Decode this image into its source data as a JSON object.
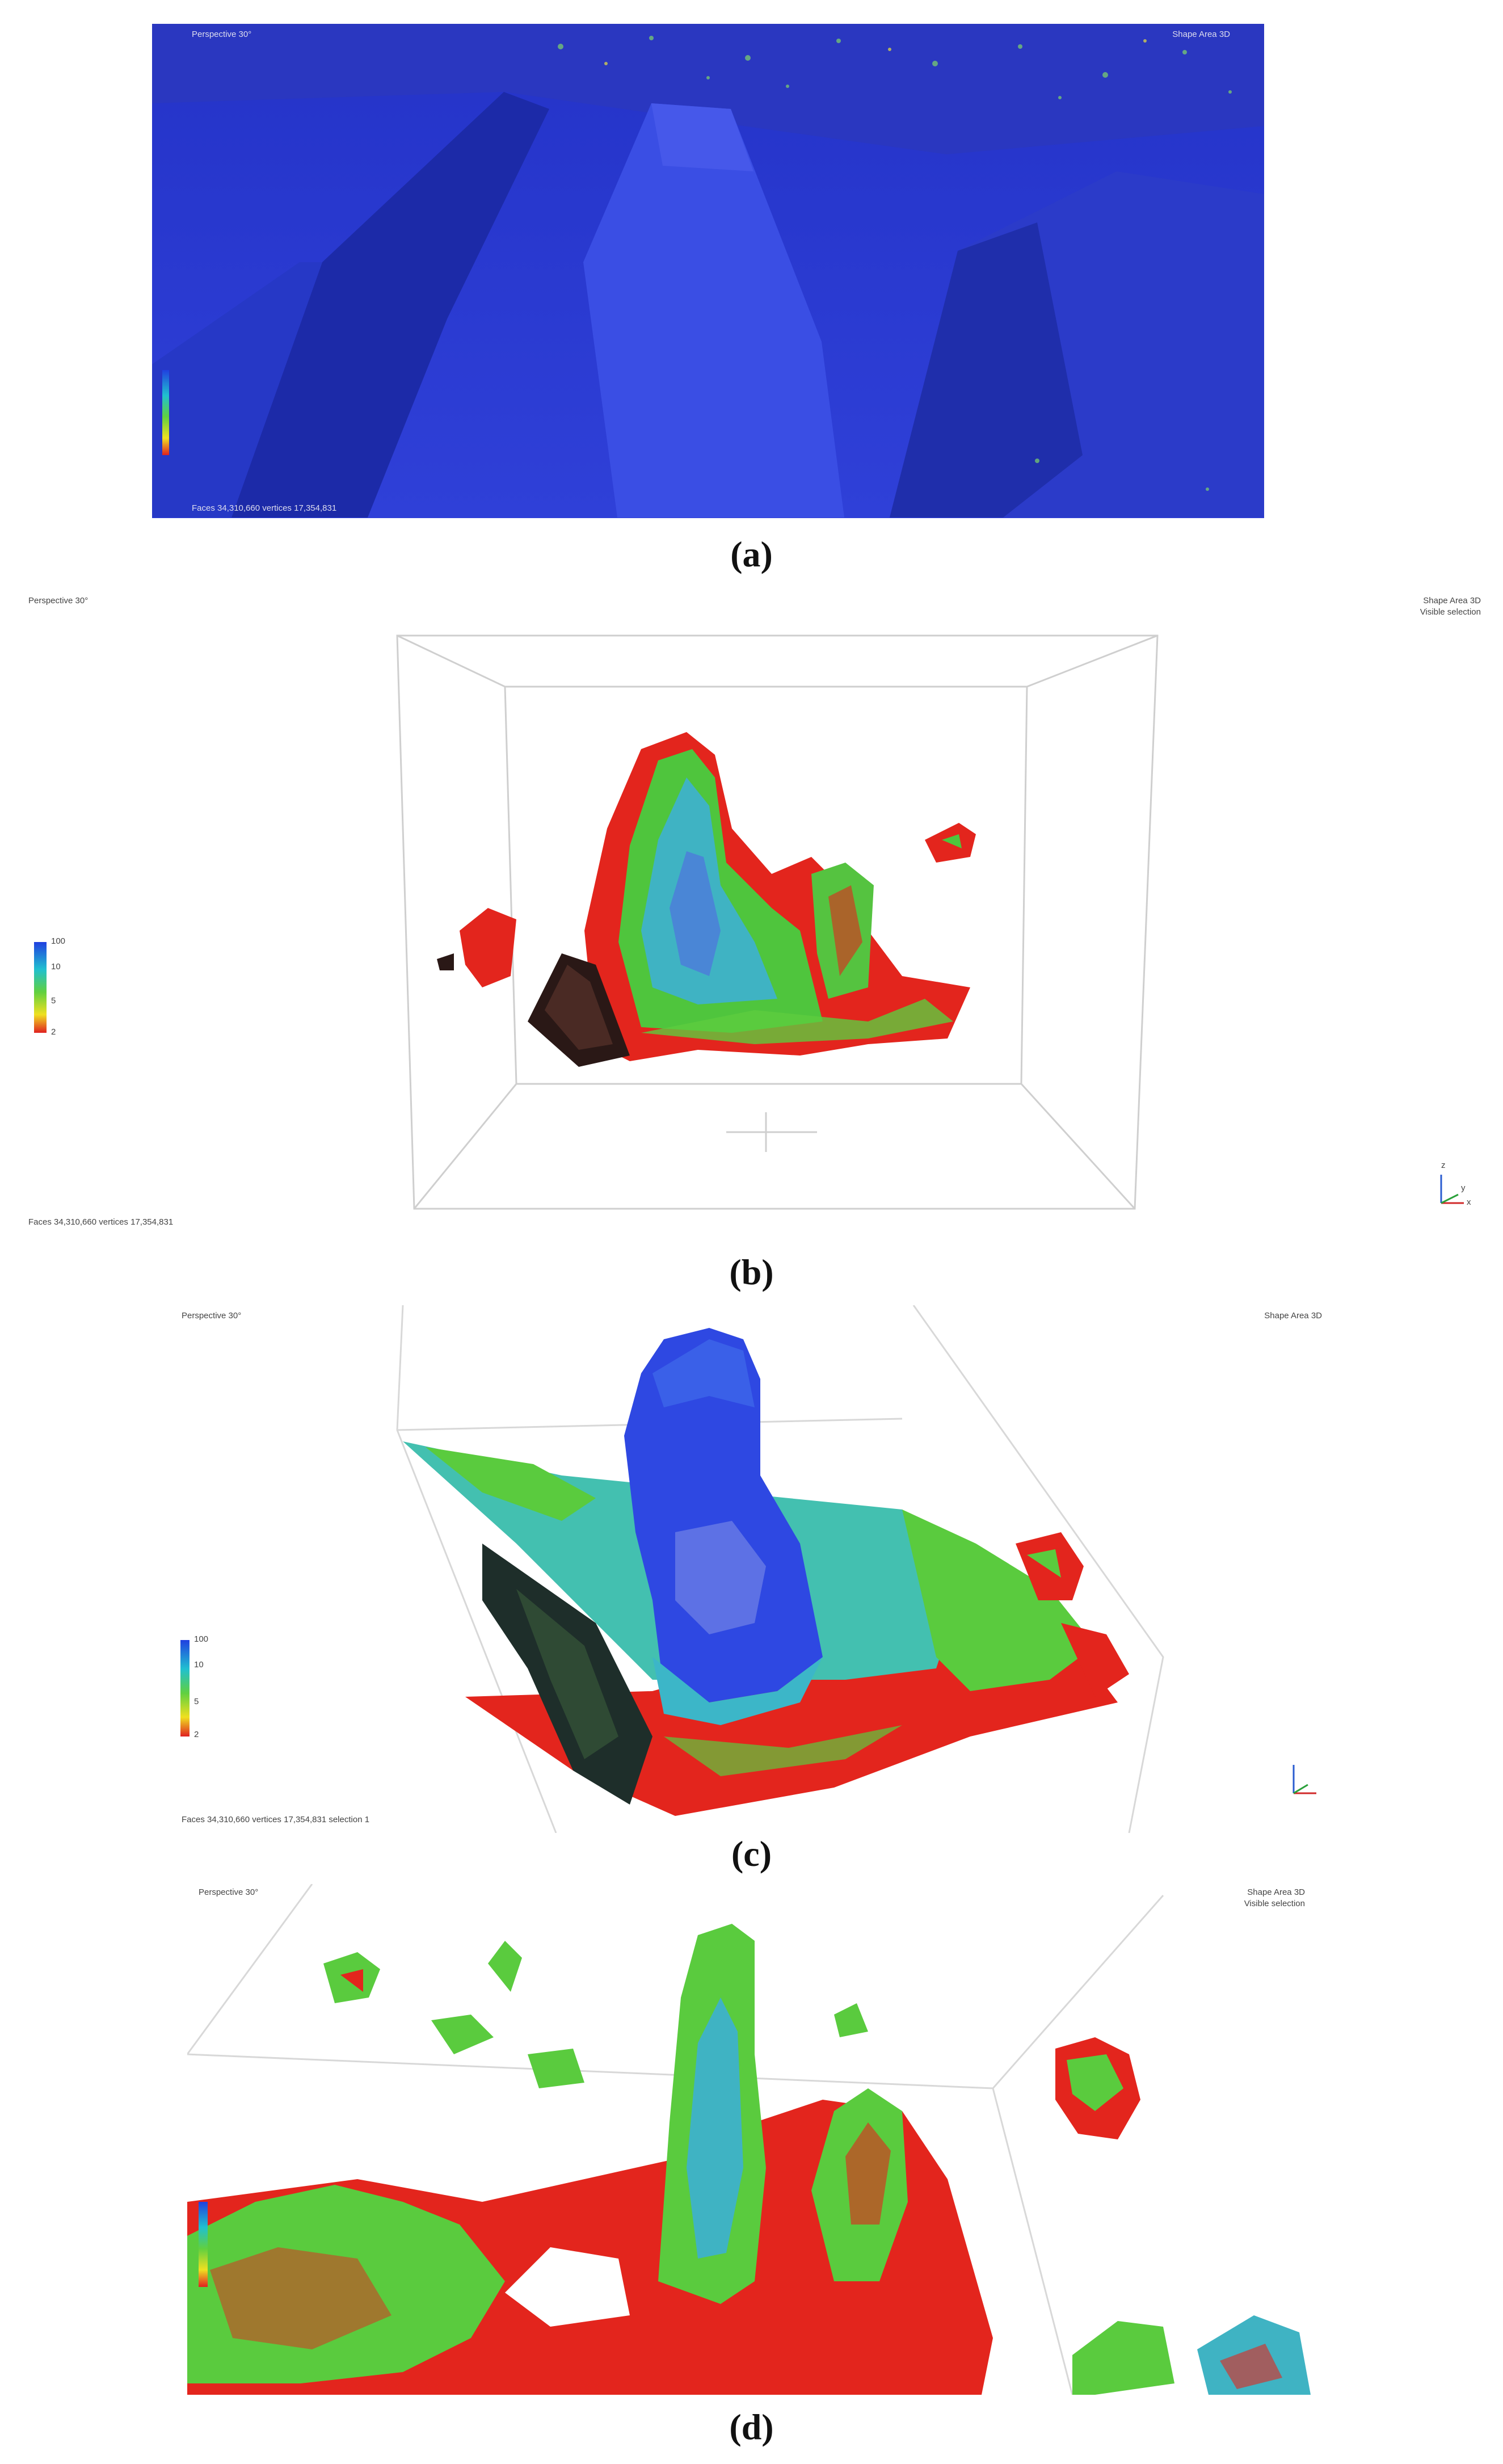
{
  "panels": [
    {
      "id": "a",
      "caption": "(a)",
      "overlays": {
        "top_left": "Perspective 30°",
        "top_right": "Shape Area 3D",
        "bottom_left": "Faces 34,310,660 vertices 17,354,831"
      },
      "scale_legend": {
        "labels": []
      }
    },
    {
      "id": "b",
      "caption": "(b)",
      "overlays": {
        "top_left": "Perspective 30°",
        "top_right": "Shape Area 3D",
        "top_right_2": "Visible selection",
        "bottom_left": "Faces 34,310,660 vertices 17,354,831"
      },
      "scale_legend": {
        "labels": [
          "100",
          "10",
          "5",
          "2"
        ]
      },
      "axis_labels": [
        "z",
        "x",
        "y"
      ]
    },
    {
      "id": "c",
      "caption": "(c)",
      "overlays": {
        "top_left": "Perspective 30°",
        "top_right": "Shape Area 3D",
        "bottom_left": "Faces 34,310,660 vertices 17,354,831 selection 1"
      },
      "scale_legend": {
        "labels": [
          "100",
          "10",
          "5",
          "2"
        ]
      }
    },
    {
      "id": "d",
      "caption": "(d)",
      "overlays": {
        "top_left": "Perspective 30°",
        "top_right": "Shape Area 3D",
        "top_right_2": "Visible selection"
      },
      "scale_legend": {
        "labels": []
      }
    }
  ],
  "colors": {
    "mesh_blue": "#2a3fd8",
    "mesh_cyan": "#3cb6c8",
    "mesh_green": "#4fce3a",
    "mesh_red": "#e4261e",
    "legend_gradient": [
      "#2040e0",
      "#20c0d0",
      "#60d040",
      "#f0e020",
      "#e02020"
    ]
  }
}
